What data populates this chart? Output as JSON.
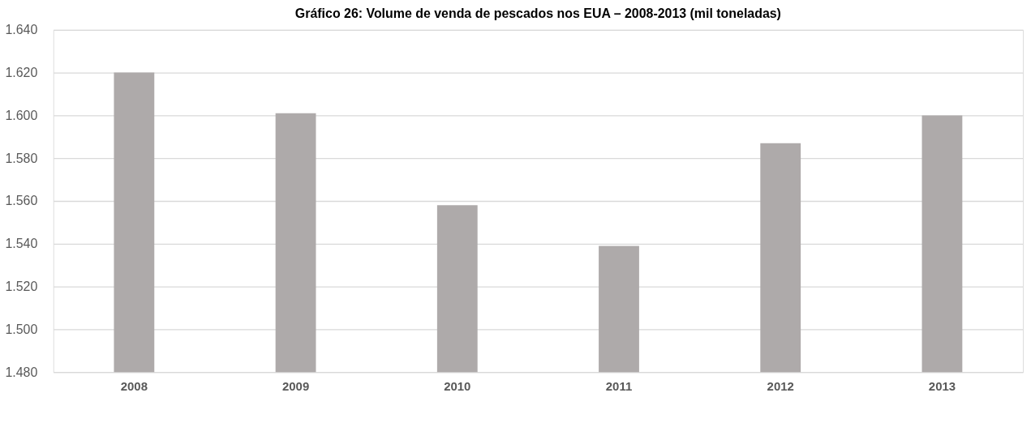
{
  "chart_data": {
    "type": "bar",
    "title": "Gráfico 26: Volume de venda de pescados nos EUA – 2008-2013 (mil toneladas)",
    "categories": [
      "2008",
      "2009",
      "2010",
      "2011",
      "2012",
      "2013"
    ],
    "values": [
      1620,
      1601,
      1558,
      1539,
      1587,
      1600
    ],
    "color": "#aeaaaa",
    "ylim": [
      1480,
      1640
    ],
    "yticks": [
      {
        "value": 1480,
        "label": "1.480"
      },
      {
        "value": 1500,
        "label": "1.500"
      },
      {
        "value": 1520,
        "label": "1.520"
      },
      {
        "value": 1540,
        "label": "1.540"
      },
      {
        "value": 1560,
        "label": "1.560"
      },
      {
        "value": 1580,
        "label": "1.580"
      },
      {
        "value": 1600,
        "label": "1.600"
      },
      {
        "value": 1620,
        "label": "1.620"
      },
      {
        "value": 1640,
        "label": "1.640"
      }
    ],
    "grid": "y"
  }
}
